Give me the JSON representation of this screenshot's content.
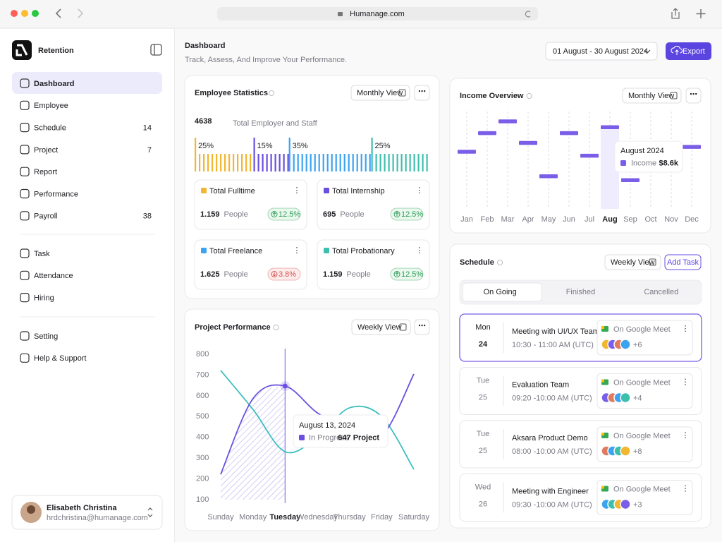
{
  "browser": {
    "url": "Humanage.com"
  },
  "sidebar": {
    "brand": "Retention",
    "menu": [
      {
        "label": "Dashboard"
      },
      {
        "label": "Employee"
      },
      {
        "label": "Schedule",
        "badge": 14
      },
      {
        "label": "Project",
        "badge": 7
      },
      {
        "label": "Report"
      },
      {
        "label": "Performance"
      },
      {
        "label": "Payroll",
        "badge": 38
      }
    ],
    "menu2": [
      {
        "label": "Task"
      },
      {
        "label": "Attendance"
      },
      {
        "label": "Hiring"
      }
    ],
    "menu3": [
      {
        "label": "Setting"
      },
      {
        "label": "Help & Support"
      }
    ],
    "user": {
      "name": "Elisabeth Christina",
      "email": "hrdchristina@humanage.com"
    }
  },
  "header": {
    "title": "Dashboard",
    "subtitle": "Track, Assess, And Improve Your Performance.",
    "date_range": "01 August - 30 August 2024",
    "export": "Export"
  },
  "employee_statistics": {
    "title": "Employee Statistics",
    "view": "Monthly View",
    "total": 4638,
    "total_label": "Total Employer and Staff",
    "distribution": {
      "values": [
        25,
        15,
        35,
        25
      ],
      "value_labels": [
        "25%",
        "15%",
        "35%",
        "25%"
      ],
      "colors": [
        "#f2b630",
        "#6a4ee0",
        "#3ba3f0",
        "#3dbfae"
      ]
    },
    "cards": [
      {
        "title": "Total Fulltime",
        "value": "1.159",
        "unit": "People",
        "change": "12.5%",
        "trend": "up",
        "color": "#f2b630"
      },
      {
        "title": "Total Internship",
        "value": "695",
        "unit": "People",
        "change": "12.5%",
        "trend": "up",
        "color": "#6a4ee0"
      },
      {
        "title": "Total Freelance",
        "value": "1.625",
        "unit": "People",
        "change": "3.8%",
        "trend": "down",
        "color": "#3ba3f0"
      },
      {
        "title": "Total Probationary",
        "value": "1.159",
        "unit": "People",
        "change": "12.5%",
        "trend": "up",
        "color": "#3dbfae"
      }
    ]
  },
  "chart_data": [
    {
      "type": "marker",
      "title": "Income Overview",
      "view": "Monthly View",
      "categories": [
        "Jan",
        "Feb",
        "Mar",
        "Apr",
        "May",
        "Jun",
        "Jul",
        "Aug",
        "Sep",
        "Oct",
        "Nov",
        "Dec"
      ],
      "series": [
        {
          "name": "Income",
          "color": "#7b5ee8",
          "values": [
            6.1,
            8.0,
            9.2,
            7.0,
            3.6,
            8.0,
            5.7,
            8.6,
            3.2,
            null,
            null,
            6.6
          ]
        }
      ],
      "ylim": [
        0,
        10.8
      ],
      "highlight": 7,
      "tooltip": {
        "title": "August 2024",
        "value": "$8.6k"
      }
    },
    {
      "type": "line",
      "title": "Project Performance",
      "view": "Weekly View",
      "categories": [
        "Sunday",
        "Monday",
        "Tuesday",
        "Wednesday",
        "Thursday",
        "Friday",
        "Saturday"
      ],
      "series": [
        {
          "name": "In Progress",
          "color": "#6c4fe0",
          "values": [
            222,
            586,
            647,
            518,
            440,
            406,
            705
          ]
        },
        {
          "color": "#3dbfbf",
          "values": [
            722,
            535,
            331,
            400,
            542,
            500,
            246
          ]
        }
      ],
      "ylim": [
        100,
        800
      ],
      "yticks": [
        100,
        200,
        300,
        400,
        500,
        600,
        700,
        800
      ],
      "highlight": 2,
      "tooltip": {
        "title": "August 13, 2024",
        "value": "647 Project"
      }
    }
  ],
  "schedule": {
    "title": "Schedule",
    "view": "Weekly View",
    "add": "Add Task",
    "tabs": [
      "On Going",
      "Finished",
      "Cancelled"
    ],
    "active_tab": 0,
    "events": [
      {
        "day": "Mon",
        "date": 24,
        "title": "Meeting with UI/UX Team",
        "time": "10:30 - 11:00 AM (UTC)",
        "location": "On Google Meet",
        "more": "+6"
      },
      {
        "day": "Tue",
        "date": 25,
        "title": "Evaluation Team",
        "time": "09:20 -10:00 AM (UTC)",
        "location": "On Google Meet",
        "more": "+4"
      },
      {
        "day": "Tue",
        "date": 25,
        "title": "Aksara Product Demo",
        "time": "08:00 -10:00 AM (UTC)",
        "location": "On Google Meet",
        "more": "+8"
      },
      {
        "day": "Wed",
        "date": 26,
        "title": "Meeting with Engineer",
        "time": "09:30 -10:00 AM (UTC)",
        "location": "On Google Meet",
        "more": "+3"
      }
    ]
  }
}
